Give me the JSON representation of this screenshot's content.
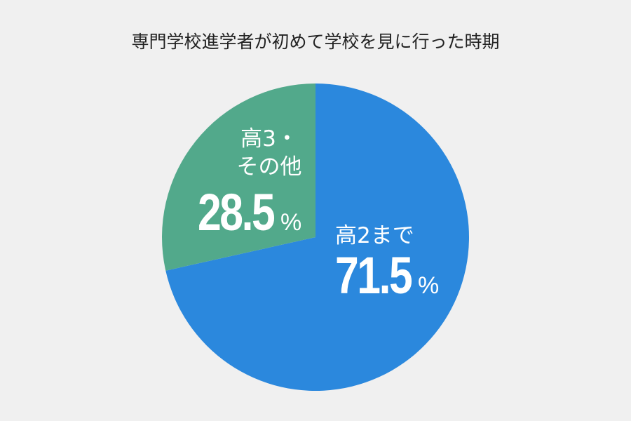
{
  "chart_data": {
    "type": "pie",
    "title": "専門学校進学者が初めて学校を見に行った時期",
    "categories": [
      "高2まで",
      "高3・その他"
    ],
    "values": [
      71.5,
      28.5
    ],
    "value_labels": [
      "71.5%",
      "28.5%"
    ],
    "colors": [
      "#2b88dd",
      "#52a98b"
    ]
  }
}
